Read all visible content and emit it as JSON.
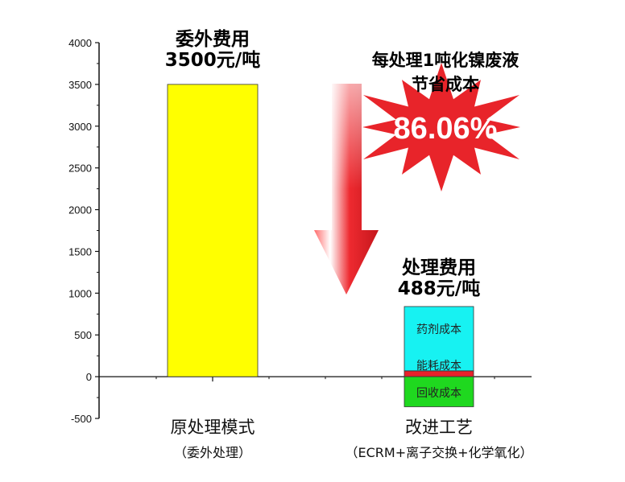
{
  "chart_data": {
    "type": "bar",
    "ylim": [
      -500,
      4000
    ],
    "yticks": [
      -500,
      0,
      500,
      1000,
      1500,
      2000,
      2500,
      3000,
      3500,
      4000
    ],
    "categories": [
      {
        "label": "原处理模式",
        "sublabel": "（委外处理）"
      },
      {
        "label": "改进工艺",
        "sublabel": "（ECRM+离子交换+化学氧化）"
      }
    ],
    "bars": [
      {
        "category": 0,
        "bottom": 0,
        "top": 3500,
        "color": "#ffff00",
        "label": ""
      },
      {
        "category": 1,
        "bottom": 0,
        "top": 70,
        "color": "#e8212a",
        "label": "能耗成本"
      },
      {
        "category": 1,
        "bottom": 70,
        "top": 840,
        "color": "#17f2f2",
        "label": "药剂成本"
      },
      {
        "category": 1,
        "bottom": -360,
        "top": 0,
        "color": "#1fd81f",
        "label": "回收成本"
      }
    ],
    "annotations": {
      "bar1_line1": "委外费用",
      "bar1_line2": "3500元/吨",
      "bar2_line1": "处理费用",
      "bar2_line2": "488元/吨",
      "saving_line1": "每处理1吨化镍废液",
      "saving_line2": "节省成本",
      "saving_pct": "86.06%"
    },
    "grid": false
  },
  "colors": {
    "arrow": "#e8242a",
    "burst": "#e8242a"
  }
}
